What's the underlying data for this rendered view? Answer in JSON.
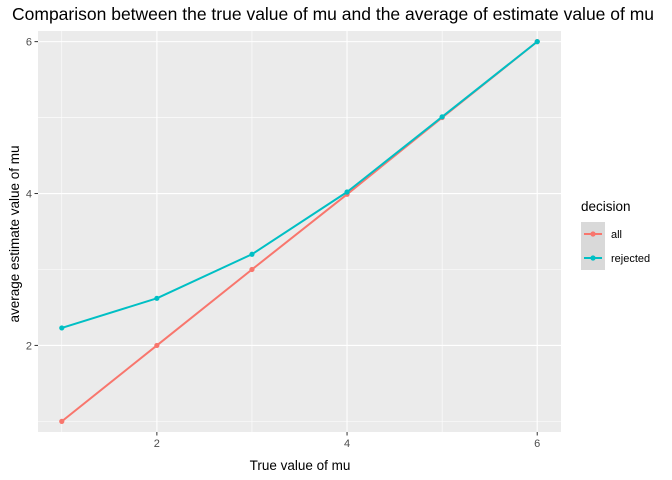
{
  "chart_data": {
    "type": "line",
    "title": "Comparison between the true value of mu and the average of estimate value of mu",
    "xlabel": "True value of mu",
    "ylabel": "average estimate value of mu",
    "xlim": [
      0.75,
      6.25
    ],
    "ylim": [
      0.86,
      6.14
    ],
    "x_ticks": [
      2,
      4,
      6
    ],
    "x_tick_labels": [
      "2",
      "4",
      "6"
    ],
    "y_ticks": [
      2,
      4,
      6
    ],
    "y_tick_labels": [
      "2",
      "4",
      "6"
    ],
    "grid": true,
    "legend": {
      "title": "decision",
      "placement": "right",
      "entries": [
        "all",
        "rejected"
      ]
    },
    "series": [
      {
        "name": "all",
        "color": "#F8766D",
        "x": [
          1,
          2,
          3,
          4,
          5,
          6
        ],
        "y": [
          1.0,
          2.0,
          3.0,
          3.99,
          5.0,
          6.0
        ]
      },
      {
        "name": "rejected",
        "color": "#00BFC4",
        "x": [
          1,
          2,
          3,
          4,
          5,
          6
        ],
        "y": [
          2.23,
          2.62,
          3.2,
          4.02,
          5.01,
          6.0
        ]
      }
    ],
    "colors": {
      "panel": "#EBEBEB",
      "grid": "#FFFFFF",
      "legend_key": "#D9D9D9"
    }
  }
}
